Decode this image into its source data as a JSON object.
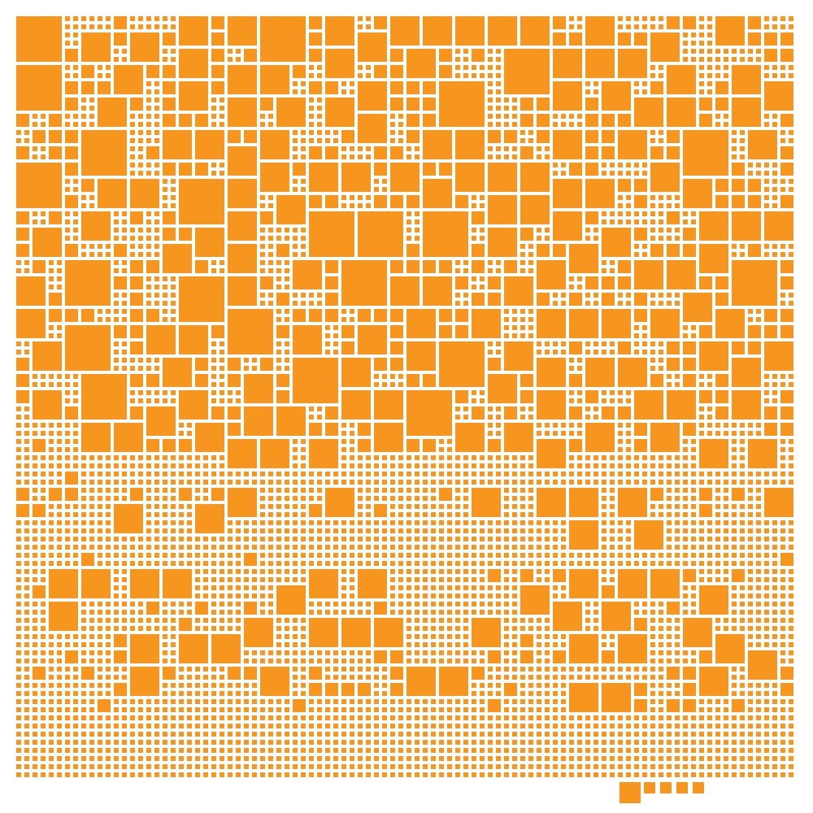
{
  "mosaic": {
    "fill_color": "#F7961E",
    "background_color": "#FFFFFF",
    "tile_shape": "square"
  }
}
